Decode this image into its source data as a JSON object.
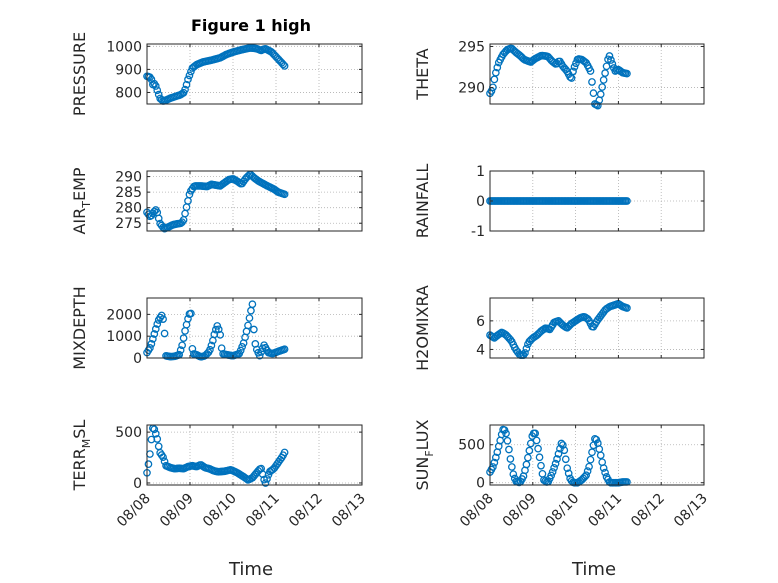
{
  "figure_title": "Figure 1 high",
  "xlabel": "Time",
  "x_tick_labels": [
    "08/08",
    "08/09",
    "08/10",
    "08/11",
    "08/12",
    "08/13"
  ],
  "colors": {
    "marker": "#0072BD",
    "axis": "#262626",
    "grid": "#b0b0b0"
  },
  "chart_data": [
    {
      "type": "scatter",
      "id": "pressure",
      "ylabel": "PRESSURE",
      "ylim": [
        750,
        1010
      ],
      "yticks": [
        800,
        900,
        1000
      ],
      "grid": true,
      "knots": [
        [
          0.0,
          870
        ],
        [
          0.06,
          868
        ],
        [
          0.1,
          858
        ],
        [
          0.14,
          832
        ],
        [
          0.18,
          840
        ],
        [
          0.22,
          820
        ],
        [
          0.3,
          775
        ],
        [
          0.38,
          762
        ],
        [
          0.46,
          768
        ],
        [
          0.54,
          775
        ],
        [
          0.62,
          780
        ],
        [
          0.7,
          785
        ],
        [
          0.78,
          790
        ],
        [
          0.86,
          800
        ],
        [
          0.9,
          820
        ],
        [
          0.95,
          855
        ],
        [
          1.0,
          880
        ],
        [
          1.05,
          905
        ],
        [
          1.15,
          920
        ],
        [
          1.3,
          932
        ],
        [
          1.5,
          940
        ],
        [
          1.7,
          950
        ],
        [
          1.85,
          965
        ],
        [
          2.0,
          975
        ],
        [
          2.2,
          985
        ],
        [
          2.4,
          993
        ],
        [
          2.55,
          990
        ],
        [
          2.65,
          982
        ],
        [
          2.75,
          990
        ],
        [
          2.9,
          975
        ],
        [
          3.0,
          955
        ],
        [
          3.1,
          935
        ],
        [
          3.2,
          915
        ]
      ],
      "n": 95
    },
    {
      "type": "scatter",
      "id": "theta",
      "ylabel": "THETA",
      "ylim": [
        288,
        295.3
      ],
      "yticks": [
        290,
        295
      ],
      "grid": true,
      "knots": [
        [
          0.0,
          289.3
        ],
        [
          0.06,
          289.8
        ],
        [
          0.12,
          291.5
        ],
        [
          0.2,
          293.0
        ],
        [
          0.3,
          294.0
        ],
        [
          0.4,
          294.6
        ],
        [
          0.5,
          294.8
        ],
        [
          0.6,
          294.3
        ],
        [
          0.7,
          293.9
        ],
        [
          0.8,
          293.4
        ],
        [
          0.95,
          293.1
        ],
        [
          1.05,
          293.5
        ],
        [
          1.2,
          293.9
        ],
        [
          1.35,
          293.8
        ],
        [
          1.45,
          293.2
        ],
        [
          1.55,
          292.8
        ],
        [
          1.62,
          293.3
        ],
        [
          1.7,
          292.6
        ],
        [
          1.8,
          292.0
        ],
        [
          1.9,
          291.0
        ],
        [
          1.95,
          292.2
        ],
        [
          2.05,
          293.5
        ],
        [
          2.15,
          293.4
        ],
        [
          2.25,
          293.0
        ],
        [
          2.35,
          292.0
        ],
        [
          2.4,
          290.0
        ],
        [
          2.45,
          288.0
        ],
        [
          2.52,
          287.8
        ],
        [
          2.58,
          289.0
        ],
        [
          2.65,
          290.8
        ],
        [
          2.72,
          292.5
        ],
        [
          2.78,
          294.0
        ],
        [
          2.85,
          293.0
        ],
        [
          2.92,
          292.0
        ],
        [
          3.0,
          292.2
        ],
        [
          3.1,
          291.8
        ],
        [
          3.2,
          291.7
        ]
      ],
      "n": 95
    },
    {
      "type": "scatter",
      "id": "air_temp",
      "ylabel": "AIR_TEMP",
      "ylim": [
        272.5,
        291.8
      ],
      "yticks": [
        275,
        280,
        285,
        290
      ],
      "grid": true,
      "knots": [
        [
          0.0,
          278.5
        ],
        [
          0.08,
          277.0
        ],
        [
          0.15,
          278.5
        ],
        [
          0.22,
          279.5
        ],
        [
          0.3,
          275.0
        ],
        [
          0.4,
          273.2
        ],
        [
          0.5,
          273.8
        ],
        [
          0.6,
          274.5
        ],
        [
          0.7,
          274.8
        ],
        [
          0.8,
          275.0
        ],
        [
          0.85,
          276.0
        ],
        [
          0.9,
          279.0
        ],
        [
          0.95,
          282.0
        ],
        [
          1.0,
          285.0
        ],
        [
          1.1,
          287.0
        ],
        [
          1.25,
          287.0
        ],
        [
          1.4,
          286.8
        ],
        [
          1.5,
          287.5
        ],
        [
          1.7,
          287.0
        ],
        [
          1.9,
          289.0
        ],
        [
          2.0,
          289.3
        ],
        [
          2.1,
          288.5
        ],
        [
          2.2,
          287.5
        ],
        [
          2.3,
          289.5
        ],
        [
          2.4,
          290.8
        ],
        [
          2.5,
          289.5
        ],
        [
          2.6,
          288.5
        ],
        [
          2.8,
          287.0
        ],
        [
          2.95,
          286.0
        ],
        [
          3.05,
          285.0
        ],
        [
          3.2,
          284.3
        ]
      ],
      "n": 95
    },
    {
      "type": "scatter",
      "id": "rainfall",
      "ylabel": "RAINFALL",
      "ylim": [
        -1,
        1
      ],
      "yticks": [
        -1,
        0,
        1
      ],
      "grid": true,
      "knots": [
        [
          0.0,
          0
        ],
        [
          3.2,
          0
        ]
      ],
      "n": 95
    },
    {
      "type": "scatter",
      "id": "mixdepth",
      "ylabel": "MIXDEPTH",
      "ylim": [
        0,
        2750
      ],
      "yticks": [
        0,
        1000,
        2000
      ],
      "grid": true,
      "knots": [
        [
          0.0,
          250
        ],
        [
          0.08,
          500
        ],
        [
          0.14,
          900
        ],
        [
          0.2,
          1300
        ],
        [
          0.26,
          1700
        ],
        [
          0.32,
          1900
        ],
        [
          0.36,
          2000
        ],
        [
          0.4,
          1400
        ],
        [
          0.44,
          100
        ],
        [
          0.55,
          60
        ],
        [
          0.65,
          80
        ],
        [
          0.75,
          150
        ],
        [
          0.82,
          600
        ],
        [
          0.88,
          1200
        ],
        [
          0.94,
          1700
        ],
        [
          0.98,
          2000
        ],
        [
          1.02,
          2100
        ],
        [
          1.06,
          200
        ],
        [
          1.15,
          150
        ],
        [
          1.25,
          50
        ],
        [
          1.35,
          100
        ],
        [
          1.45,
          300
        ],
        [
          1.52,
          700
        ],
        [
          1.58,
          1200
        ],
        [
          1.64,
          1500
        ],
        [
          1.7,
          1100
        ],
        [
          1.75,
          200
        ],
        [
          1.85,
          150
        ],
        [
          2.0,
          100
        ],
        [
          2.15,
          200
        ],
        [
          2.25,
          700
        ],
        [
          2.35,
          1500
        ],
        [
          2.45,
          2500
        ],
        [
          2.5,
          800
        ],
        [
          2.55,
          400
        ],
        [
          2.62,
          100
        ],
        [
          2.72,
          600
        ],
        [
          2.82,
          250
        ],
        [
          2.92,
          200
        ],
        [
          3.05,
          300
        ],
        [
          3.2,
          400
        ]
      ],
      "n": 95
    },
    {
      "type": "scatter",
      "id": "h2omixra",
      "ylabel": "H2OMIXRA",
      "ylim": [
        3.4,
        7.6
      ],
      "yticks": [
        4,
        6
      ],
      "grid": true,
      "knots": [
        [
          0.0,
          5.0
        ],
        [
          0.1,
          4.8
        ],
        [
          0.18,
          5.0
        ],
        [
          0.28,
          5.2
        ],
        [
          0.38,
          5.0
        ],
        [
          0.5,
          4.6
        ],
        [
          0.6,
          4.0
        ],
        [
          0.7,
          3.6
        ],
        [
          0.8,
          3.6
        ],
        [
          0.9,
          4.5
        ],
        [
          1.0,
          4.8
        ],
        [
          1.1,
          5.0
        ],
        [
          1.2,
          5.3
        ],
        [
          1.3,
          5.5
        ],
        [
          1.4,
          5.4
        ],
        [
          1.5,
          5.9
        ],
        [
          1.6,
          6.0
        ],
        [
          1.7,
          5.7
        ],
        [
          1.8,
          5.5
        ],
        [
          1.9,
          5.8
        ],
        [
          2.0,
          6.0
        ],
        [
          2.1,
          6.2
        ],
        [
          2.2,
          6.3
        ],
        [
          2.3,
          6.1
        ],
        [
          2.4,
          5.5
        ],
        [
          2.5,
          6.0
        ],
        [
          2.6,
          6.4
        ],
        [
          2.7,
          6.8
        ],
        [
          2.8,
          7.0
        ],
        [
          2.9,
          7.1
        ],
        [
          3.0,
          7.2
        ],
        [
          3.1,
          7.0
        ],
        [
          3.2,
          6.9
        ]
      ],
      "n": 95
    },
    {
      "type": "scatter",
      "id": "terr_msl",
      "ylabel": "TERR_MSL",
      "ylim": [
        -20,
        570
      ],
      "yticks": [
        0,
        500
      ],
      "grid": true,
      "knots": [
        [
          0.0,
          100
        ],
        [
          0.06,
          250
        ],
        [
          0.1,
          420
        ],
        [
          0.14,
          550
        ],
        [
          0.18,
          520
        ],
        [
          0.24,
          430
        ],
        [
          0.3,
          300
        ],
        [
          0.38,
          250
        ],
        [
          0.44,
          170
        ],
        [
          0.55,
          150
        ],
        [
          0.65,
          140
        ],
        [
          0.75,
          145
        ],
        [
          0.85,
          140
        ],
        [
          0.95,
          160
        ],
        [
          1.05,
          170
        ],
        [
          1.15,
          160
        ],
        [
          1.25,
          180
        ],
        [
          1.35,
          150
        ],
        [
          1.45,
          140
        ],
        [
          1.55,
          120
        ],
        [
          1.65,
          110
        ],
        [
          1.8,
          115
        ],
        [
          1.95,
          130
        ],
        [
          2.1,
          100
        ],
        [
          2.25,
          60
        ],
        [
          2.35,
          30
        ],
        [
          2.45,
          50
        ],
        [
          2.55,
          100
        ],
        [
          2.65,
          150
        ],
        [
          2.75,
          -10
        ],
        [
          2.85,
          110
        ],
        [
          2.95,
          140
        ],
        [
          3.05,
          200
        ],
        [
          3.15,
          260
        ],
        [
          3.2,
          300
        ]
      ],
      "n": 95
    },
    {
      "type": "scatter",
      "id": "sun_flux",
      "ylabel": "SUN_FLUX",
      "ylim": [
        -30,
        760
      ],
      "yticks": [
        0,
        500
      ],
      "grid": true,
      "knots": [
        [
          0.0,
          140
        ],
        [
          0.08,
          220
        ],
        [
          0.16,
          380
        ],
        [
          0.24,
          560
        ],
        [
          0.3,
          700
        ],
        [
          0.36,
          690
        ],
        [
          0.42,
          520
        ],
        [
          0.48,
          300
        ],
        [
          0.54,
          120
        ],
        [
          0.6,
          20
        ],
        [
          0.7,
          0
        ],
        [
          0.78,
          80
        ],
        [
          0.86,
          260
        ],
        [
          0.94,
          480
        ],
        [
          1.0,
          650
        ],
        [
          1.06,
          650
        ],
        [
          1.12,
          460
        ],
        [
          1.18,
          260
        ],
        [
          1.25,
          40
        ],
        [
          1.35,
          0
        ],
        [
          1.45,
          120
        ],
        [
          1.55,
          280
        ],
        [
          1.62,
          420
        ],
        [
          1.68,
          540
        ],
        [
          1.74,
          420
        ],
        [
          1.8,
          200
        ],
        [
          1.88,
          40
        ],
        [
          1.95,
          0
        ],
        [
          2.05,
          0
        ],
        [
          2.15,
          40
        ],
        [
          2.25,
          100
        ],
        [
          2.32,
          220
        ],
        [
          2.4,
          450
        ],
        [
          2.46,
          600
        ],
        [
          2.52,
          520
        ],
        [
          2.58,
          380
        ],
        [
          2.64,
          220
        ],
        [
          2.72,
          80
        ],
        [
          2.8,
          0
        ],
        [
          2.9,
          0
        ],
        [
          3.0,
          0
        ],
        [
          3.1,
          10
        ],
        [
          3.2,
          10
        ]
      ],
      "n": 95
    }
  ]
}
